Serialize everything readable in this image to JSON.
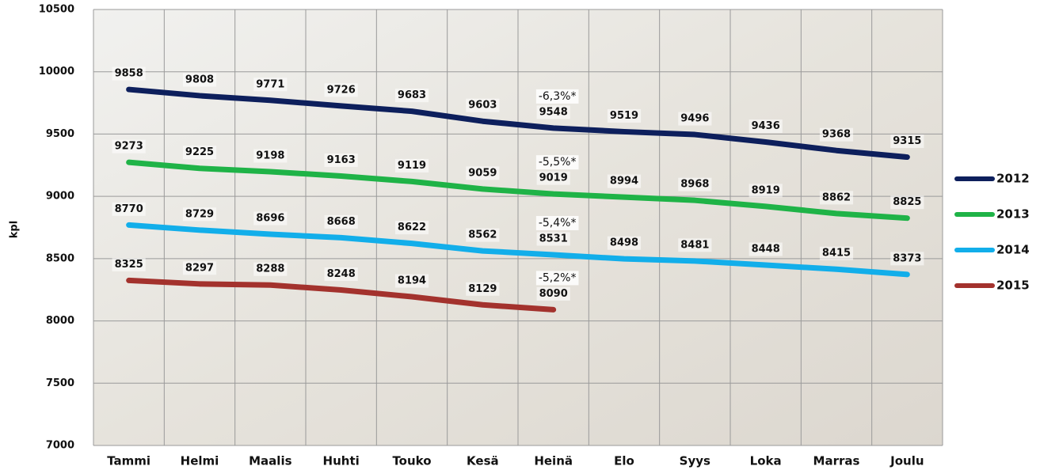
{
  "chart_data": {
    "type": "line",
    "y_label": "kpl",
    "categories": [
      "Tammi",
      "Helmi",
      "Maalis",
      "Huhti",
      "Touko",
      "Kesä",
      "Heinä",
      "Elo",
      "Syys",
      "Loka",
      "Marras",
      "Joulu"
    ],
    "series": [
      {
        "name": "2012",
        "color": "#0d1f5c",
        "annotation": "-6,3%*",
        "values": [
          9858,
          9808,
          9771,
          9726,
          9683,
          9603,
          9548,
          9519,
          9496,
          9436,
          9368,
          9315
        ]
      },
      {
        "name": "2013",
        "color": "#1fb347",
        "annotation": "-5,5%*",
        "values": [
          9273,
          9225,
          9198,
          9163,
          9119,
          9059,
          9019,
          8994,
          8968,
          8919,
          8862,
          8825
        ]
      },
      {
        "name": "2014",
        "color": "#12aeea",
        "annotation": "-5,4%*",
        "values": [
          8770,
          8729,
          8696,
          8668,
          8622,
          8562,
          8531,
          8498,
          8481,
          8448,
          8415,
          8373
        ]
      },
      {
        "name": "2015",
        "color": "#a3322d",
        "annotation": "-5,2%*",
        "values": [
          8325,
          8297,
          8288,
          8248,
          8194,
          8129,
          8090,
          null,
          null,
          null,
          null,
          null
        ]
      }
    ],
    "ylim": [
      7000,
      10500
    ],
    "yticks": [
      7000,
      7500,
      8000,
      8500,
      9000,
      9500,
      10000,
      10500
    ],
    "grid": true,
    "legend": "right"
  }
}
